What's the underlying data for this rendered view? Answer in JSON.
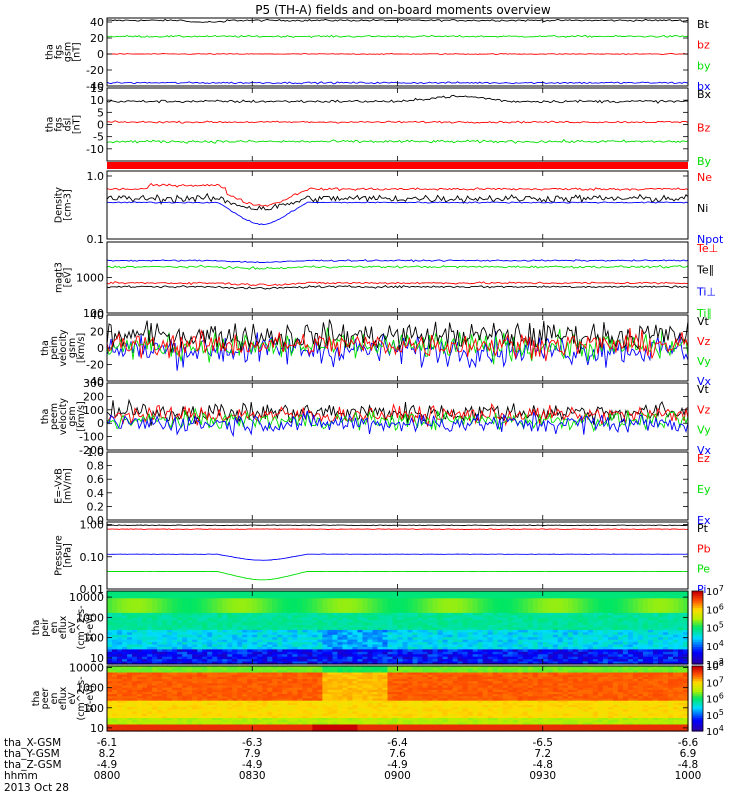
{
  "title": "P5 (TH-A) fields and on-board moments overview",
  "colors": {
    "black": "#000000",
    "red": "#ff0000",
    "green": "#00e000",
    "blue": "#0000ff",
    "bar_red": "#ff0000"
  },
  "chart_data": [
    {
      "id": "fgs_gsm",
      "type": "line",
      "ylabel": [
        "tha",
        "fgs",
        "gsm",
        "[nT]"
      ],
      "ylim": [
        -40,
        45
      ],
      "yticks": [
        "40",
        "20",
        "0",
        "-20",
        "-40"
      ],
      "legend": [
        {
          "name": "Bt",
          "color": "black"
        },
        {
          "name": "bz",
          "color": "red"
        },
        {
          "name": "by",
          "color": "green"
        },
        {
          "name": "bx",
          "color": "blue"
        }
      ],
      "series": [
        {
          "name": "Bt",
          "color": "black",
          "level": 42,
          "noise": 0.6
        },
        {
          "name": "by",
          "color": "green",
          "level": 22,
          "noise": 0.6
        },
        {
          "name": "bz",
          "color": "red",
          "level": 0,
          "noise": 0.3
        },
        {
          "name": "bx",
          "color": "blue",
          "level": -36,
          "noise": 0.6
        }
      ]
    },
    {
      "id": "fgs_dsl",
      "type": "line",
      "ylabel": [
        "tha",
        "fgs",
        "dsl",
        "[nT]"
      ],
      "ylim": [
        -15,
        15
      ],
      "yticks": [
        "15",
        "10",
        "5",
        "0",
        "-5",
        "-10"
      ],
      "legend": [
        {
          "name": "Bx",
          "color": "black"
        },
        {
          "name": "Bz",
          "color": "red"
        },
        {
          "name": "By",
          "color": "green"
        }
      ],
      "series": [
        {
          "name": "Bx",
          "color": "black",
          "level": 9.5,
          "noise": 0.3
        },
        {
          "name": "Bz",
          "color": "red",
          "level": 1,
          "noise": 0.2
        },
        {
          "name": "By",
          "color": "green",
          "level": -7,
          "noise": 0.3
        }
      ]
    },
    {
      "id": "density",
      "type": "line",
      "scale": "log",
      "ylabel": [
        "Density",
        "[cm-3]"
      ],
      "ylim": [
        0.1,
        1.2
      ],
      "yticks": [
        "1.0",
        "0.1"
      ],
      "legend": [
        {
          "name": "Ne",
          "color": "red"
        },
        {
          "name": "Ni",
          "color": "black"
        },
        {
          "name": "Npot",
          "color": "blue"
        }
      ],
      "series": [
        {
          "name": "Ne",
          "color": "red",
          "level": 0.62,
          "noise": 0.02
        },
        {
          "name": "Ni",
          "color": "black",
          "level": 0.44,
          "noise": 0.06
        },
        {
          "name": "Npot",
          "color": "blue",
          "level": 0.38,
          "noise": 0.01
        }
      ]
    },
    {
      "id": "temperature",
      "type": "line",
      "scale": "log",
      "ylabel": [
        "magt3",
        "[eV]"
      ],
      "ylim": [
        100,
        10000
      ],
      "yticks": [
        "1000",
        "100"
      ],
      "legend": [
        {
          "name": "Te⊥",
          "color": "red"
        },
        {
          "name": "Te∥",
          "color": "black"
        },
        {
          "name": "Ti⊥",
          "color": "blue"
        },
        {
          "name": "Ti∥",
          "color": "green"
        }
      ],
      "series": [
        {
          "name": "Ti⊥",
          "color": "blue",
          "level": 3000,
          "noise": 0.02
        },
        {
          "name": "Ti∥",
          "color": "green",
          "level": 2000,
          "noise": 0.03
        },
        {
          "name": "Te⊥",
          "color": "red",
          "level": 700,
          "noise": 0.03
        },
        {
          "name": "Te∥",
          "color": "black",
          "level": 550,
          "noise": 0.03
        }
      ]
    },
    {
      "id": "peim_velocity",
      "type": "line",
      "ylabel": [
        "tha",
        "peim",
        "velocity",
        "gsm",
        "[km/s]"
      ],
      "ylim": [
        -40,
        40
      ],
      "yticks": [
        "40",
        "20",
        "0",
        "-20",
        "-40"
      ],
      "legend": [
        {
          "name": "Vt",
          "color": "black"
        },
        {
          "name": "Vz",
          "color": "red"
        },
        {
          "name": "Vy",
          "color": "green"
        },
        {
          "name": "Vx",
          "color": "blue"
        }
      ],
      "series": [
        {
          "name": "Vx",
          "color": "blue",
          "level": -2,
          "noise": 10
        },
        {
          "name": "Vy",
          "color": "green",
          "level": 2,
          "noise": 9
        },
        {
          "name": "Vt",
          "color": "black",
          "level": 15,
          "noise": 9
        },
        {
          "name": "Vz",
          "color": "red",
          "level": 4,
          "noise": 8
        }
      ]
    },
    {
      "id": "peem_velocity",
      "type": "line",
      "ylabel": [
        "tha",
        "peem",
        "velocity",
        "gsm",
        "[km/s]"
      ],
      "ylim": [
        -200,
        300
      ],
      "yticks": [
        "300",
        "200",
        "100",
        "0",
        "-100",
        "-200"
      ],
      "legend": [
        {
          "name": "Vt",
          "color": "black"
        },
        {
          "name": "Vz",
          "color": "red"
        },
        {
          "name": "Vy",
          "color": "green"
        },
        {
          "name": "Vx",
          "color": "blue"
        }
      ],
      "series": [
        {
          "name": "Vt",
          "color": "black",
          "level": 80,
          "noise": 40
        },
        {
          "name": "Vz",
          "color": "red",
          "level": 60,
          "noise": 35
        },
        {
          "name": "Vy",
          "color": "green",
          "level": 20,
          "noise": 35
        },
        {
          "name": "Vx",
          "color": "blue",
          "level": 0,
          "noise": 40
        }
      ]
    },
    {
      "id": "efield",
      "type": "line",
      "ylabel": [
        "E=-VxB",
        "[mV/m]"
      ],
      "ylim": [
        0,
        1
      ],
      "yticks": [
        "1.0",
        "0.8",
        "0.6",
        "0.4",
        "0.2",
        "0.0"
      ],
      "legend": [
        {
          "name": "Ez",
          "color": "red"
        },
        {
          "name": "Ey",
          "color": "green"
        },
        {
          "name": "Ex",
          "color": "blue"
        }
      ],
      "series": []
    },
    {
      "id": "pressure",
      "type": "line",
      "scale": "log",
      "ylabel": [
        "Pressure",
        "[nPa]"
      ],
      "ylim": [
        0.01,
        1.2
      ],
      "yticks": [
        "1.00",
        "0.10",
        "0.01"
      ],
      "legend": [
        {
          "name": "Pt",
          "color": "black"
        },
        {
          "name": "Pb",
          "color": "red"
        },
        {
          "name": "Pe",
          "color": "green"
        },
        {
          "name": "Pi",
          "color": "blue"
        }
      ],
      "series": [
        {
          "name": "Pt",
          "color": "black",
          "level": 0.95,
          "noise": 0.01
        },
        {
          "name": "Pb",
          "color": "red",
          "level": 0.72,
          "noise": 0.01
        },
        {
          "name": "Pi",
          "color": "blue",
          "level": 0.12,
          "noise": 0.005
        },
        {
          "name": "Pe",
          "color": "green",
          "level": 0.035,
          "noise": 0.002
        }
      ]
    },
    {
      "id": "peir_eflux",
      "type": "heatmap",
      "scale": "log",
      "ylabel": [
        "tha",
        "peir",
        "en",
        "eflux",
        "eV",
        "(cm^2-s-",
        "sr-eV)"
      ],
      "ylim": [
        5,
        20000
      ],
      "yticks": [
        "10000",
        "1000",
        "100",
        "10"
      ],
      "colorbar": {
        "ticks": [
          "10^7",
          "10^6",
          "10^5",
          "10^4",
          "10^3"
        ],
        "range": [
          1000,
          10000000
        ]
      }
    },
    {
      "id": "peer_eflux",
      "type": "heatmap",
      "scale": "log",
      "ylabel": [
        "tha",
        "peer",
        "en",
        "eflux",
        "eV",
        "(cm^2-s-",
        "sr-eV)"
      ],
      "ylim": [
        7,
        12000
      ],
      "yticks": [
        "10000",
        "1000",
        "100",
        "10"
      ],
      "colorbar": {
        "ticks": [
          "10^8",
          "10^7",
          "10^6",
          "10^5",
          "10^4"
        ],
        "range": [
          10000,
          100000000
        ]
      }
    }
  ],
  "xaxis": {
    "rows": [
      {
        "label": "tha_X-GSM",
        "values": [
          "-6.1",
          "-6.3",
          "-6.4",
          "-6.5",
          "-6.6"
        ]
      },
      {
        "label": "tha_Y-GSM",
        "values": [
          "8.2",
          "7.9",
          "7.6",
          "7.2",
          "6.9"
        ]
      },
      {
        "label": "tha_Z-GSM",
        "values": [
          "-4.9",
          "-4.9",
          "-4.9",
          "-4.8",
          "-4.8"
        ]
      },
      {
        "label": "hhmm",
        "values": [
          "0800",
          "0830",
          "0900",
          "0930",
          "1000"
        ]
      }
    ],
    "date": "2013 Oct 28"
  }
}
